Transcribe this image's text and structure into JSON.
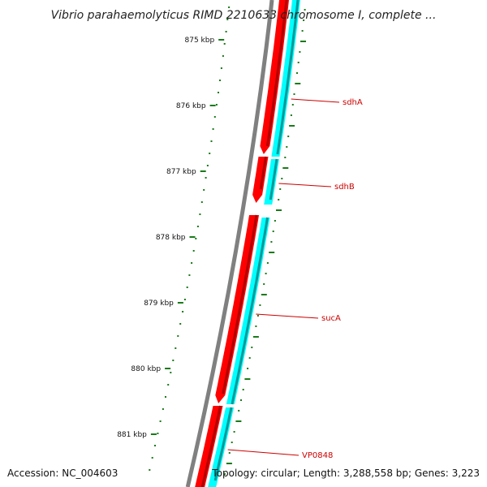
{
  "title": "Vibrio parahaemolyticus RIMD 2210633 chromosome I, complete ...",
  "accession": "Accession: NC_004603",
  "summary": "Topology: circular; Length: 3,288,558 bp; Genes: 3,223",
  "colors": {
    "backbone": "#808080",
    "forward_gene": "#ff0000",
    "forward_gene_dark": "#b00000",
    "reverse_gene": "#00ffff",
    "reverse_gene_dark": "#009999",
    "ticks": "#1a7a1a",
    "gene_label": "#cc0000"
  },
  "kbp_labels": [
    "875 kbp",
    "876 kbp",
    "877 kbp",
    "878 kbp",
    "879 kbp",
    "880 kbp",
    "881 kbp"
  ],
  "genes": [
    {
      "name": "sdhA",
      "strand": "reverse"
    },
    {
      "name": "sdhB",
      "strand": "reverse"
    },
    {
      "name": "sucA",
      "strand": "reverse"
    },
    {
      "name": "VP0848",
      "strand": "reverse"
    }
  ]
}
